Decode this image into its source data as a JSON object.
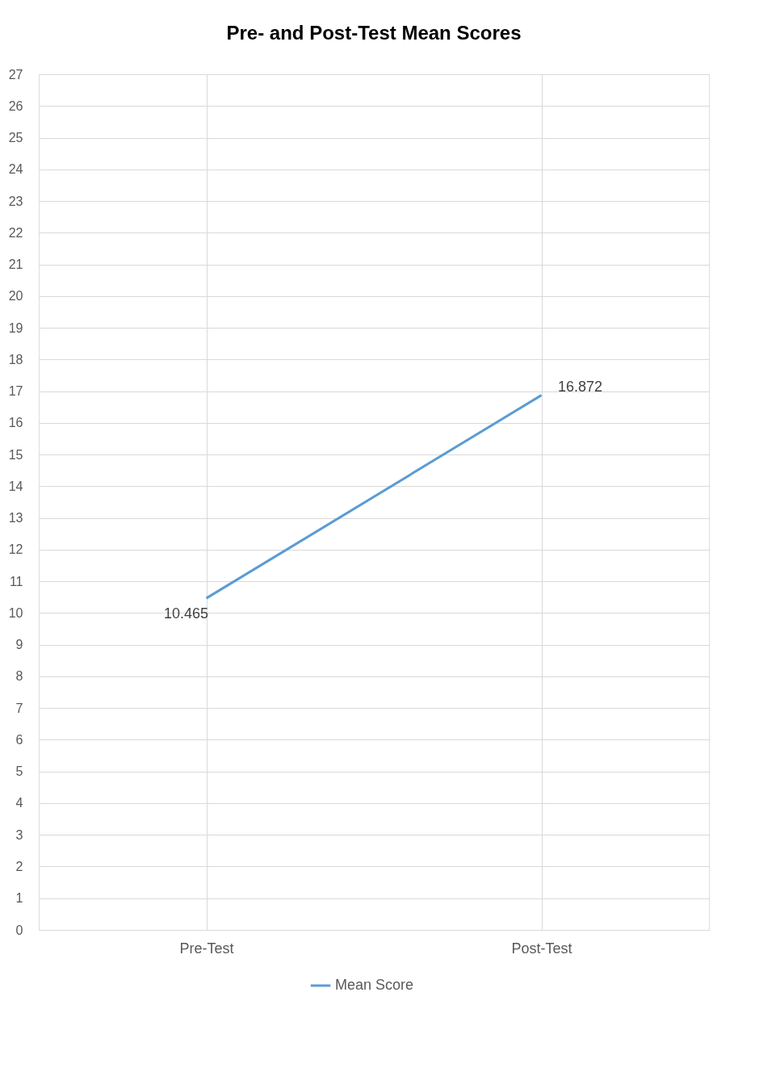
{
  "chart_data": {
    "type": "line",
    "title": "Pre- and Post-Test Mean Scores",
    "categories": [
      "Pre-Test",
      "Post-Test"
    ],
    "series": [
      {
        "name": "Mean Score",
        "color": "#5b9bd5",
        "values": [
          10.465,
          16.872
        ]
      }
    ],
    "ylim": [
      0,
      27
    ],
    "yticks": [
      0,
      1,
      2,
      3,
      4,
      5,
      6,
      7,
      8,
      9,
      10,
      11,
      12,
      13,
      14,
      15,
      16,
      17,
      18,
      19,
      20,
      21,
      22,
      23,
      24,
      25,
      26,
      27
    ],
    "grid": true,
    "legend": "bottom",
    "data_labels": true,
    "marker": "none",
    "line_style": "solid"
  }
}
